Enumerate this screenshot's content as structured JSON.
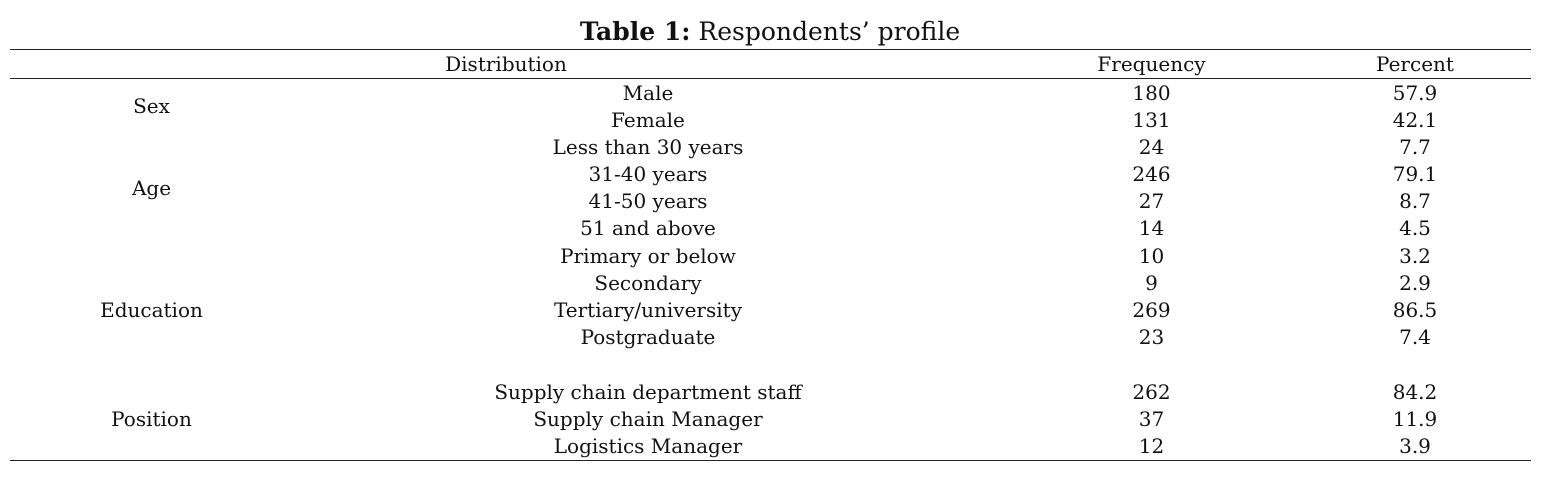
{
  "table": {
    "label": "Table 1:",
    "caption": "Respondents’ profile",
    "headers": {
      "distribution": "Distribution",
      "frequency": "Frequency",
      "percent": "Percent"
    },
    "groups": [
      {
        "name": "Sex",
        "rows": [
          {
            "label": "Male",
            "frequency": "180",
            "percent": "57.9"
          },
          {
            "label": "Female",
            "frequency": "131",
            "percent": "42.1"
          }
        ]
      },
      {
        "name": "Age",
        "rows": [
          {
            "label": "Less than 30 years",
            "frequency": "24",
            "percent": "7.7"
          },
          {
            "label": "31-40 years",
            "frequency": "246",
            "percent": "79.1"
          },
          {
            "label": "41-50 years",
            "frequency": "27",
            "percent": "8.7"
          },
          {
            "label": "51 and above",
            "frequency": "14",
            "percent": "4.5"
          }
        ]
      },
      {
        "name": "Education",
        "rows": [
          {
            "label": "Primary or below",
            "frequency": "10",
            "percent": "3.2"
          },
          {
            "label": "Secondary",
            "frequency": "9",
            "percent": "2.9"
          },
          {
            "label": "Tertiary/university",
            "frequency": "269",
            "percent": "86.5"
          },
          {
            "label": "Postgraduate",
            "frequency": "23",
            "percent": "7.4"
          }
        ]
      },
      {
        "name": "Position",
        "rows": [
          {
            "label": "Supply chain department staff",
            "frequency": "262",
            "percent": "84.2"
          },
          {
            "label": "Supply chain Manager",
            "frequency": "37",
            "percent": "11.9"
          },
          {
            "label": "Logistics Manager",
            "frequency": "12",
            "percent": "3.9"
          }
        ]
      }
    ]
  }
}
